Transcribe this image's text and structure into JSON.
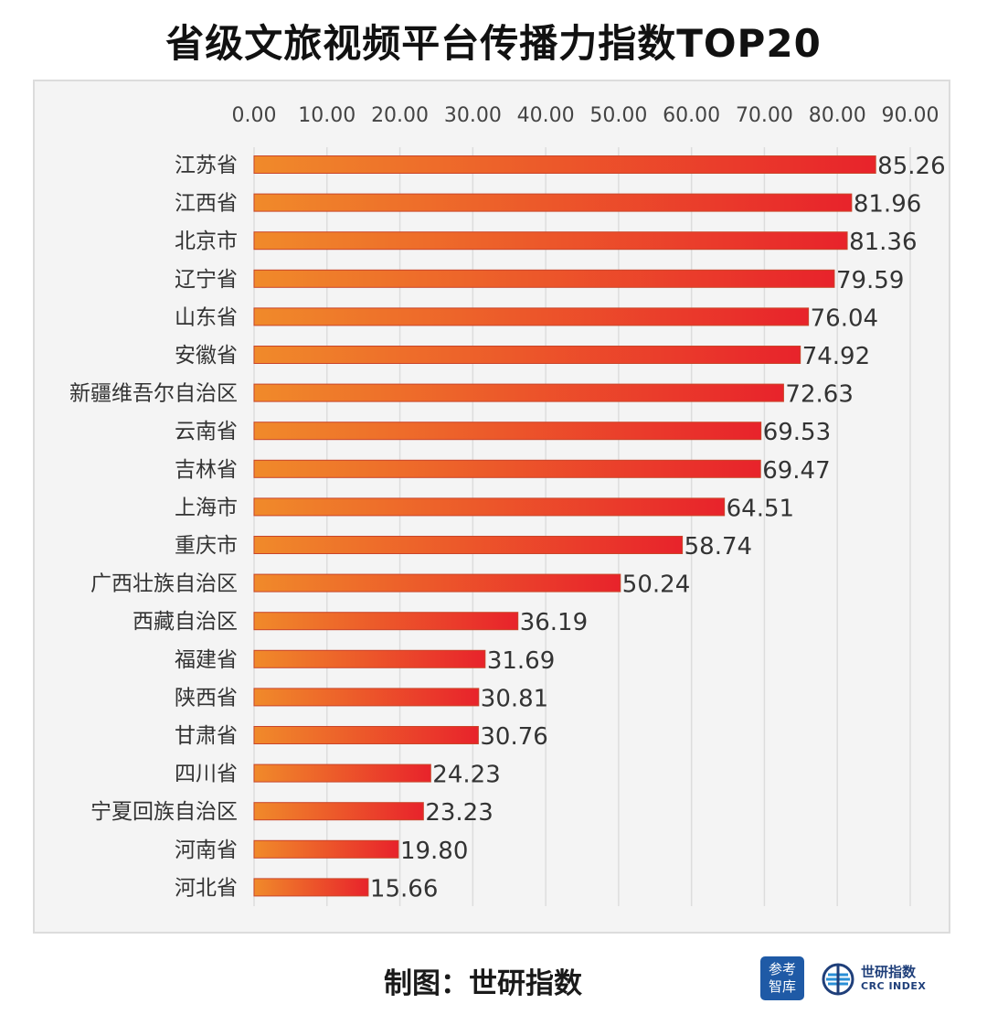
{
  "title": "省级文旅视频平台传播力指数TOP20",
  "footer": {
    "credit": "制图：世研指数",
    "logo_cankao_line1": "参考",
    "logo_cankao_line2": "智库",
    "logo_crc_cn": "世研指数",
    "logo_crc_en": "CRC INDEX"
  },
  "colors": {
    "bar_start": "#f08a2a",
    "bar_end": "#e8232b",
    "grid": "#dddddd",
    "text": "#333333"
  },
  "chart_data": {
    "type": "bar",
    "orientation": "horizontal",
    "title": "省级文旅视频平台传播力指数TOP20",
    "categories": [
      "江苏省",
      "江西省",
      "北京市",
      "辽宁省",
      "山东省",
      "安徽省",
      "新疆维吾尔自治区",
      "云南省",
      "吉林省",
      "上海市",
      "重庆市",
      "广西壮族自治区",
      "西藏自治区",
      "福建省",
      "陕西省",
      "甘肃省",
      "四川省",
      "宁夏回族自治区",
      "河南省",
      "河北省"
    ],
    "values": [
      85.26,
      81.96,
      81.36,
      79.59,
      76.04,
      74.92,
      72.63,
      69.53,
      69.47,
      64.51,
      58.74,
      50.24,
      36.19,
      31.69,
      30.81,
      30.76,
      24.23,
      23.23,
      19.8,
      15.66
    ],
    "value_labels": [
      "85.26",
      "81.96",
      "81.36",
      "79.59",
      "76.04",
      "74.92",
      "72.63",
      "69.53",
      "69.47",
      "64.51",
      "58.74",
      "50.24",
      "36.19",
      "31.69",
      "30.81",
      "30.76",
      "24.23",
      "23.23",
      "19.80",
      "15.66"
    ],
    "x_ticks": [
      0,
      10,
      20,
      30,
      40,
      50,
      60,
      70,
      80,
      90
    ],
    "x_tick_labels": [
      "0.00",
      "10.00",
      "20.00",
      "30.00",
      "40.00",
      "50.00",
      "60.00",
      "70.00",
      "80.00",
      "90.00"
    ],
    "xlim": [
      0,
      90
    ],
    "x_axis_position": "top",
    "grid": true,
    "legend": "none"
  }
}
